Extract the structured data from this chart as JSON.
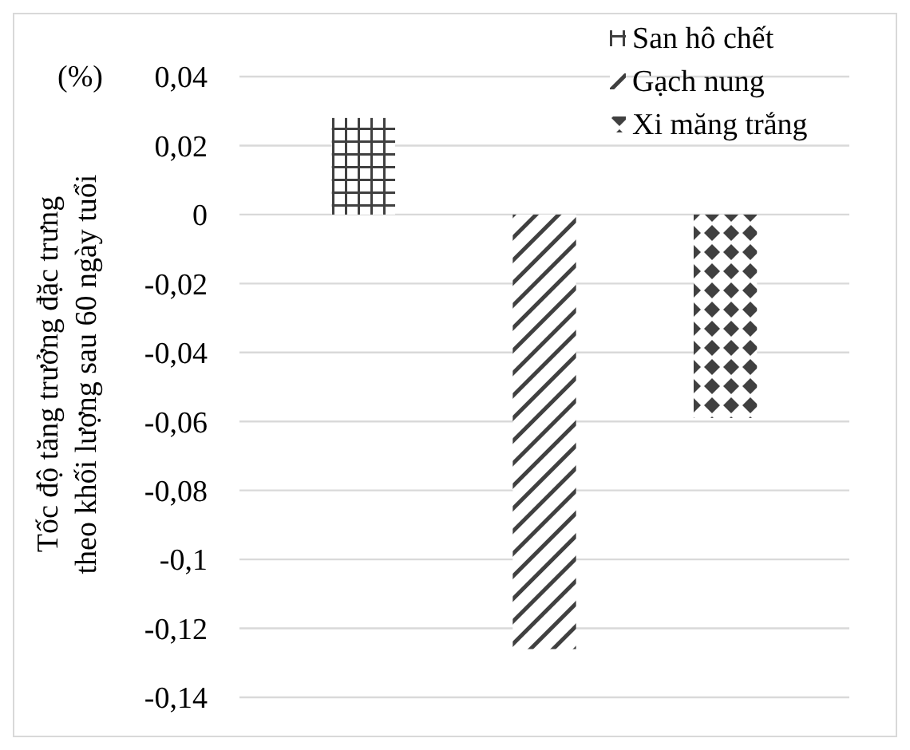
{
  "chart_data": {
    "type": "bar",
    "categories": [
      null
    ],
    "series": [
      {
        "name": "San hô chết",
        "color": "#404040",
        "values": [
          0.028
        ]
      },
      {
        "name": "Gạch nung",
        "color": "#404040",
        "values": [
          -0.126
        ]
      },
      {
        "name": "Xi măng trắng",
        "color": "#404040",
        "values": [
          -0.059
        ]
      }
    ],
    "ylabel": "Tốc độ tăng trưởng đặc trưng\ntheo khối lượng sau 60 ngày tuổi",
    "annotations": [
      "(%)"
    ],
    "ylim": [
      -0.14,
      0.04
    ],
    "yticks": [
      {
        "value": 0.04,
        "label": "0,04"
      },
      {
        "value": 0.02,
        "label": "0,02"
      },
      0,
      {
        "value": -0.02,
        "label": "-0,02"
      },
      {
        "value": -0.04,
        "label": "-0,04"
      },
      {
        "value": -0.06,
        "label": "-0,06"
      },
      {
        "value": -0.08,
        "label": "-0,08"
      },
      {
        "value": -0.1,
        "label": "-0,1"
      },
      {
        "value": -0.12,
        "label": "-0,12"
      },
      {
        "value": -0.14,
        "label": "-0,14"
      }
    ],
    "grid": "y",
    "legend": "top right"
  }
}
